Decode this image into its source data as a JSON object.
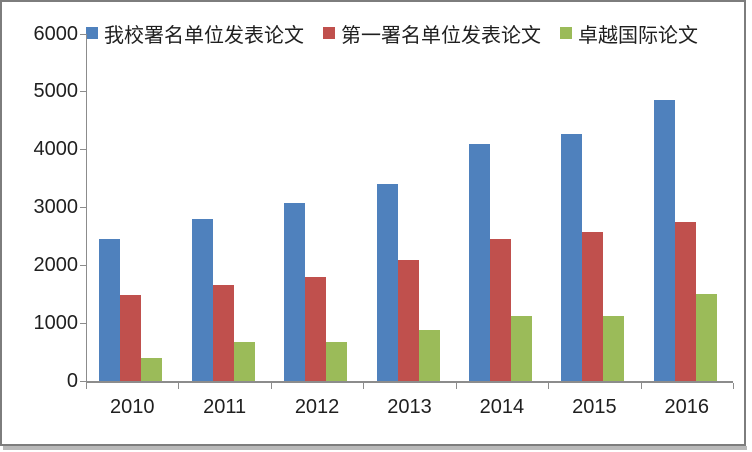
{
  "chart_data": {
    "type": "bar",
    "title": "",
    "xlabel": "",
    "ylabel": "",
    "categories": [
      "2010",
      "2011",
      "2012",
      "2013",
      "2014",
      "2015",
      "2016"
    ],
    "series": [
      {
        "name": "我校署名单位发表论文",
        "color": "#4F81BD",
        "values": [
          2450,
          2800,
          3070,
          3400,
          4090,
          4270,
          4850
        ]
      },
      {
        "name": "第一署名单位发表论文",
        "color": "#C0504D",
        "values": [
          1480,
          1650,
          1800,
          2090,
          2450,
          2570,
          2750
        ]
      },
      {
        "name": "卓越国际论文",
        "color": "#9BBB59",
        "values": [
          400,
          670,
          680,
          880,
          1130,
          1130,
          1500
        ]
      }
    ],
    "ylim": [
      0,
      6000
    ],
    "y_ticks": [
      6000,
      5000,
      4000,
      3000,
      2000,
      1000,
      0
    ],
    "grid": false,
    "legend_position": "top"
  },
  "colors": {
    "axis": "#8C8C8C",
    "text": "#1F1F1F",
    "background": "#FFFFFF",
    "frame_border": "#7D7D7D"
  }
}
